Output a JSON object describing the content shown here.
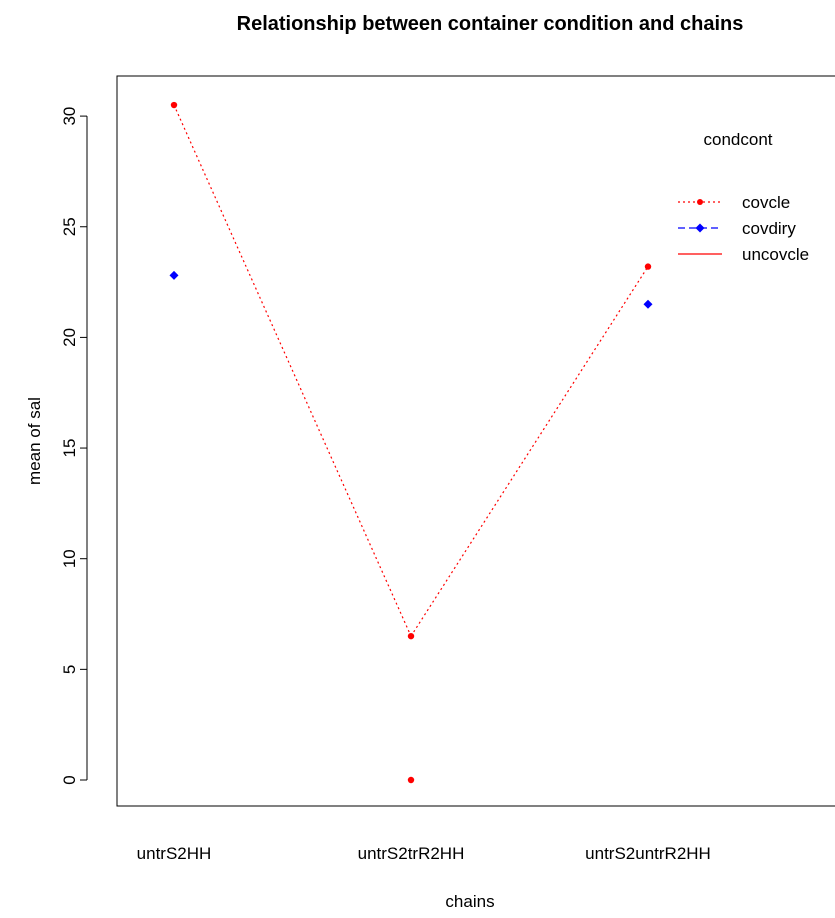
{
  "chart_data": {
    "type": "line",
    "title": "Relationship between container condition and chains",
    "xlabel": "chains",
    "ylabel": "mean of  sal",
    "categories": [
      "untrS2HH",
      "untrS2trR2HH",
      "untrS2untrR2HH"
    ],
    "yticks": [
      0,
      5,
      10,
      15,
      20,
      25,
      30
    ],
    "ylim": [
      -1.2,
      32
    ],
    "legend_title": "condcont",
    "legend_position": "top-right",
    "series": [
      {
        "name": "covcle",
        "values": [
          30.5,
          6.5,
          23.2
        ],
        "color": "#ff0000",
        "line": "dotted",
        "marker": "circle"
      },
      {
        "name": "covdiry",
        "values": [
          22.8,
          null,
          21.5
        ],
        "color": "#0000ff",
        "line": "dashed",
        "marker": "diamond"
      },
      {
        "name": "uncovcle",
        "values": [
          null,
          0.0,
          null
        ],
        "color": "#ff0000",
        "line": "solid",
        "marker": "circle"
      }
    ]
  }
}
